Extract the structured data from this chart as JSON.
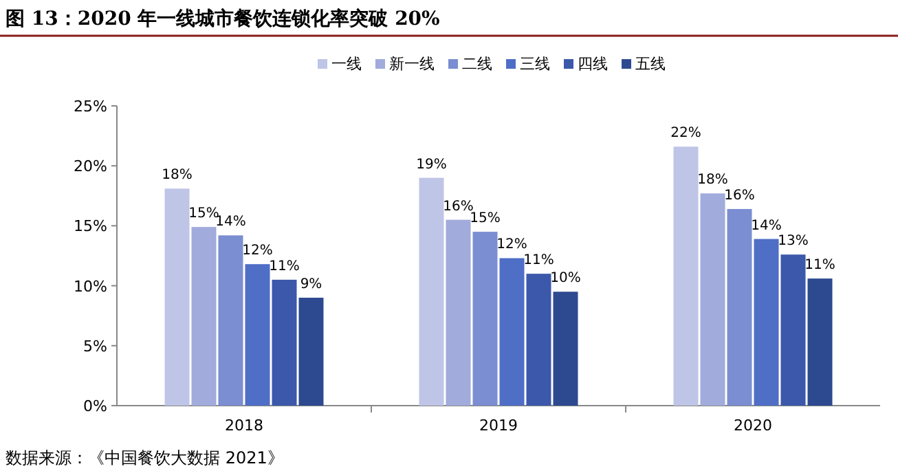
{
  "chart_data": {
    "type": "bar",
    "title": "图 13：2020 年一线城市餐饮连锁化率突破 20%",
    "categories": [
      "2018",
      "2019",
      "2020"
    ],
    "series": [
      {
        "name": "一线",
        "color": "#bfc5e6",
        "values": [
          18.1,
          19.0,
          21.6
        ],
        "value_labels": [
          "18%",
          "19%",
          "22%"
        ]
      },
      {
        "name": "新一线",
        "color": "#a1abdc",
        "values": [
          14.9,
          15.5,
          17.7
        ],
        "value_labels": [
          "15%",
          "16%",
          "18%"
        ]
      },
      {
        "name": "二线",
        "color": "#7b8ed2",
        "values": [
          14.2,
          14.5,
          16.4
        ],
        "value_labels": [
          "14%",
          "15%",
          "16%"
        ]
      },
      {
        "name": "三线",
        "color": "#4f6ec6",
        "values": [
          11.8,
          12.3,
          13.9
        ],
        "value_labels": [
          "12%",
          "12%",
          "14%"
        ]
      },
      {
        "name": "四线",
        "color": "#3b58aa",
        "values": [
          10.5,
          11.0,
          12.6
        ],
        "value_labels": [
          "11%",
          "11%",
          "13%"
        ]
      },
      {
        "name": "五线",
        "color": "#2d4a90",
        "values": [
          9.0,
          9.5,
          10.6
        ],
        "value_labels": [
          "9%",
          "10%",
          "11%"
        ]
      }
    ],
    "ylim": [
      0,
      25
    ],
    "yticks": [
      {
        "value": 0,
        "label": "0%"
      },
      {
        "value": 5,
        "label": "5%"
      },
      {
        "value": 10,
        "label": "10%"
      },
      {
        "value": 15,
        "label": "15%"
      },
      {
        "value": 20,
        "label": "20%"
      },
      {
        "value": 25,
        "label": "25%"
      }
    ],
    "legend": "top",
    "grid": false,
    "annotations": [
      "数据来源：《中国餐饮大数据 2021》"
    ]
  }
}
